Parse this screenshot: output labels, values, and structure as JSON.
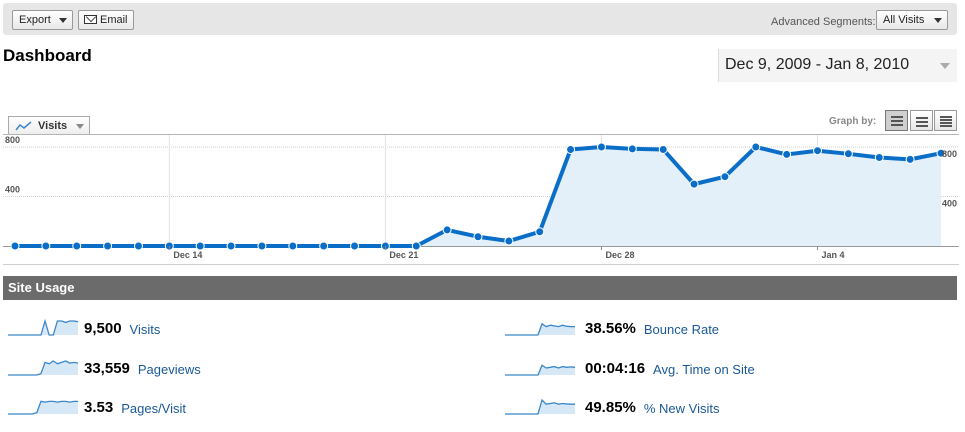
{
  "toolbar": {
    "export_label": "Export",
    "email_label": "Email",
    "advanced_segments_label": "Advanced Segments:",
    "segments_value": "All Visits"
  },
  "page": {
    "title": "Dashboard",
    "date_range": "Dec 9, 2009 - Jan 8, 2010"
  },
  "graph_controls": {
    "metric_label": "Visits",
    "graph_by_label": "Graph by:",
    "graph_by_options": [
      "day-icon",
      "week-icon",
      "month-icon"
    ]
  },
  "chart_data": {
    "type": "area",
    "x": [
      "Dec 9",
      "Dec 10",
      "Dec 11",
      "Dec 12",
      "Dec 13",
      "Dec 14",
      "Dec 15",
      "Dec 16",
      "Dec 17",
      "Dec 18",
      "Dec 19",
      "Dec 20",
      "Dec 21",
      "Dec 22",
      "Dec 23",
      "Dec 24",
      "Dec 25",
      "Dec 26",
      "Dec 27",
      "Dec 28",
      "Dec 29",
      "Dec 30",
      "Dec 31",
      "Jan 1",
      "Jan 2",
      "Jan 3",
      "Jan 4",
      "Jan 5",
      "Jan 6",
      "Jan 7",
      "Jan 8"
    ],
    "series": [
      {
        "values": [
          0,
          0,
          0,
          0,
          0,
          0,
          0,
          0,
          0,
          0,
          0,
          0,
          0,
          0,
          130,
          75,
          40,
          115,
          780,
          800,
          785,
          780,
          500,
          560,
          800,
          740,
          770,
          745,
          715,
          700,
          750
        ]
      }
    ],
    "ylim": [
      0,
      800
    ],
    "y_ticks": [
      800,
      400
    ],
    "x_tick_labels": [
      "Dec 14",
      "Dec 21",
      "Dec 28",
      "Jan 4"
    ],
    "grid": true,
    "colors": {
      "line": "#0a6ec8",
      "fill": "#e3f0f9",
      "grid": "#cccccc"
    }
  },
  "site_usage": {
    "header": "Site Usage",
    "metrics": [
      {
        "value": "9,500",
        "label": "Visits",
        "spark": [
          0,
          0,
          0,
          0,
          0,
          0,
          0,
          0,
          0,
          1,
          0,
          0,
          1,
          1,
          0.9,
          1,
          1,
          0.95
        ]
      },
      {
        "value": "33,559",
        "label": "Pageviews",
        "spark": [
          0,
          0,
          0,
          0,
          0,
          0,
          0,
          0,
          0.1,
          0.9,
          0.8,
          1,
          0.8,
          0.9,
          1,
          0.85,
          0.9,
          0.85
        ]
      },
      {
        "value": "3.53",
        "label": "Pages/Visit",
        "spark": [
          0,
          0,
          0,
          0,
          0,
          0,
          0,
          0.1,
          0.9,
          0.85,
          0.9,
          0.9,
          0.85,
          0.9,
          0.9,
          0.85,
          0.9,
          0.9
        ]
      },
      {
        "value": "38.56%",
        "label": "Bounce Rate",
        "spark": [
          0,
          0,
          0,
          0,
          0,
          0,
          0,
          0,
          0,
          0.8,
          0.6,
          0.7,
          0.65,
          0.6,
          0.7,
          0.62,
          0.6,
          0.6
        ]
      },
      {
        "value": "00:04:16",
        "label": "Avg. Time on Site",
        "spark": [
          0,
          0,
          0,
          0,
          0,
          0,
          0,
          0,
          0,
          0.7,
          0.5,
          0.55,
          0.6,
          0.5,
          0.6,
          0.55,
          0.58,
          0.55
        ]
      },
      {
        "value": "49.85%",
        "label": "% New Visits",
        "spark": [
          0,
          0,
          0,
          0,
          0,
          0,
          0,
          0,
          0,
          1,
          0.7,
          0.75,
          0.8,
          0.7,
          0.75,
          0.72,
          0.7,
          0.7
        ]
      }
    ],
    "spark_colors": {
      "line": "#3b86c7",
      "fill": "#d6e8f6"
    }
  }
}
